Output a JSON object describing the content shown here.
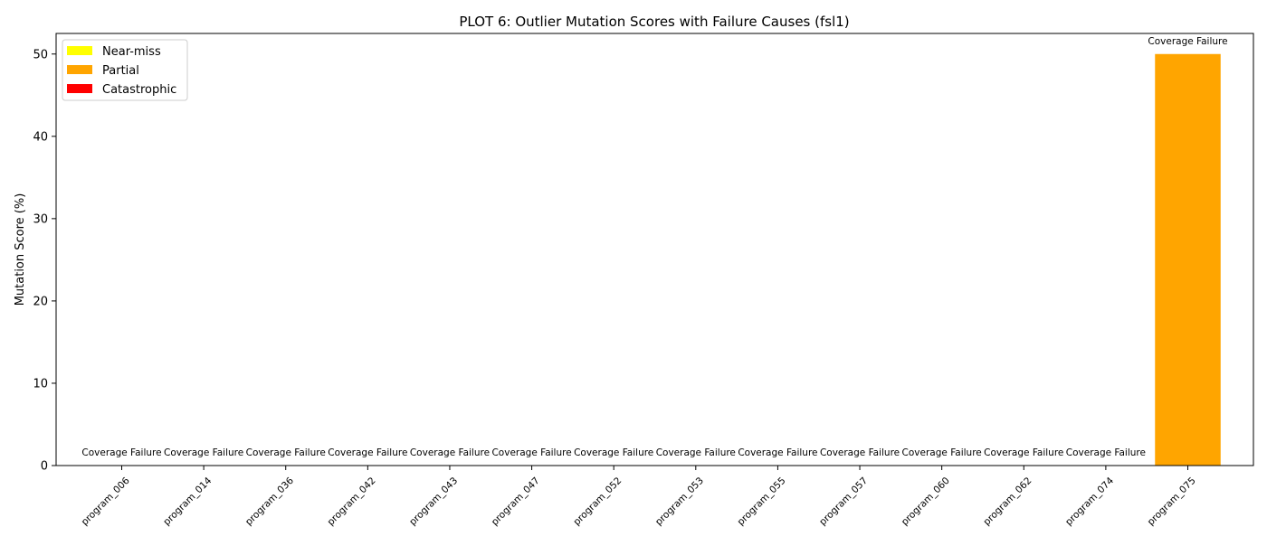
{
  "chart_data": {
    "type": "bar",
    "title": "PLOT 6: Outlier Mutation Scores with Failure Causes (fsl1)",
    "xlabel": "",
    "ylabel": "Mutation Score (%)",
    "ylim": [
      0,
      52.5
    ],
    "yticks": [
      0,
      10,
      20,
      30,
      40,
      50
    ],
    "grid": false,
    "legend_placement": "top-left",
    "legend": [
      {
        "label": "Near-miss",
        "color": "#ffff00"
      },
      {
        "label": "Partial",
        "color": "#ffa500"
      },
      {
        "label": "Catastrophic",
        "color": "#ff0000"
      }
    ],
    "categories": [
      "program_006",
      "program_014",
      "program_036",
      "program_042",
      "program_043",
      "program_047",
      "program_052",
      "program_053",
      "program_055",
      "program_057",
      "program_060",
      "program_062",
      "program_074",
      "program_075"
    ],
    "values": [
      0,
      0,
      0,
      0,
      0,
      0,
      0,
      0,
      0,
      0,
      0,
      0,
      0,
      50
    ],
    "bar_colors": [
      "#ffa500",
      "#ffa500",
      "#ffa500",
      "#ffa500",
      "#ffa500",
      "#ffa500",
      "#ffa500",
      "#ffa500",
      "#ffa500",
      "#ffa500",
      "#ffa500",
      "#ffa500",
      "#ffa500",
      "#ffa500"
    ],
    "annotations": [
      "Coverage Failure",
      "Coverage Failure",
      "Coverage Failure",
      "Coverage Failure",
      "Coverage Failure",
      "Coverage Failure",
      "Coverage Failure",
      "Coverage Failure",
      "Coverage Failure",
      "Coverage Failure",
      "Coverage Failure",
      "Coverage Failure",
      "Coverage Failure",
      "Coverage Failure"
    ]
  }
}
